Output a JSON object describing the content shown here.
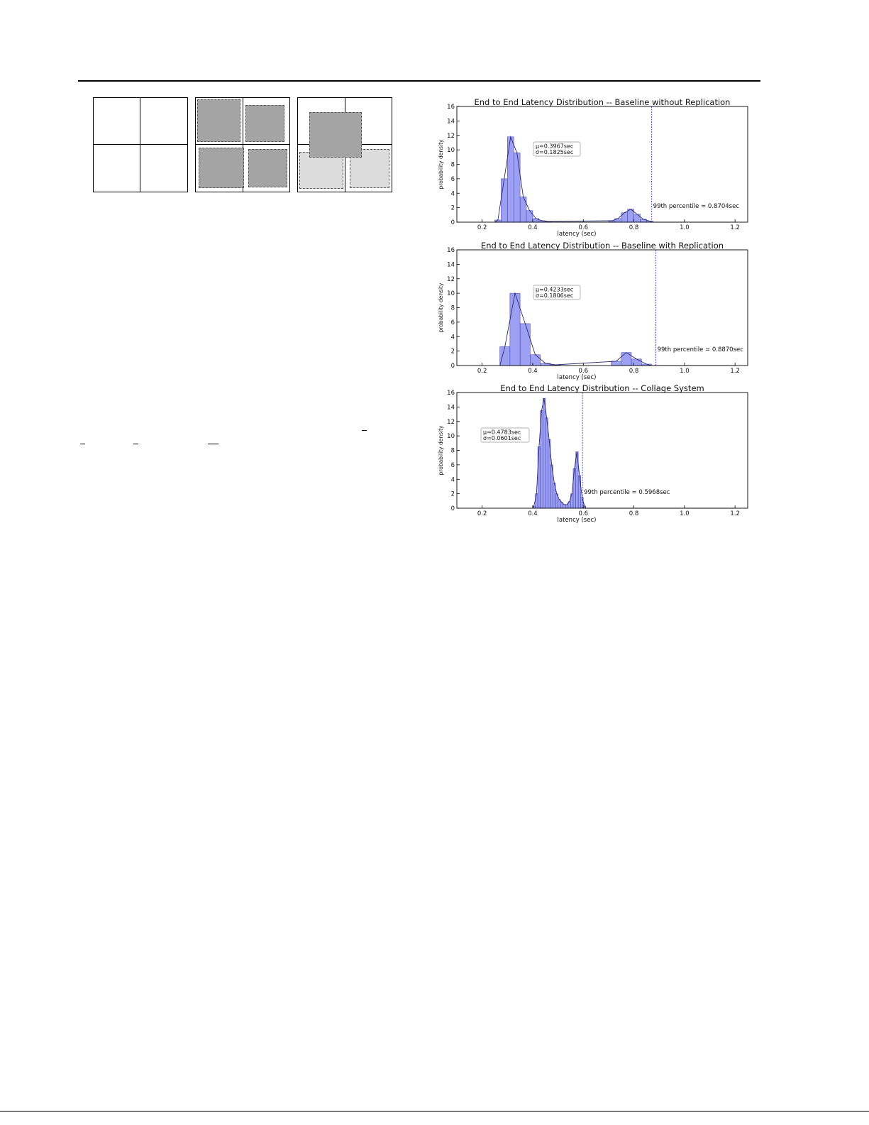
{
  "figure": {
    "diagram_panels": [
      {
        "name": "empty-grid",
        "tiles": []
      },
      {
        "name": "four-tiles",
        "tiles": [
          "dark",
          "dark",
          "dark",
          "dark"
        ]
      },
      {
        "name": "collage-tiles",
        "tiles": [
          "light",
          "light",
          "dark"
        ]
      }
    ]
  },
  "colors": {
    "bar": "#8b8ef0",
    "bar_edge": "#3c3fb0",
    "curve": "#2a2a6a",
    "percentile_line": "#3d3dcc"
  },
  "chart_data": [
    {
      "type": "bar",
      "title": "End to End Latency Distribution -- Baseline without Replication",
      "xlabel": "latency (sec)",
      "ylabel": "probability density",
      "xlim": [
        0.1,
        1.25
      ],
      "ylim": [
        0,
        16
      ],
      "xticks": [
        "0.2",
        "0.4",
        "0.6",
        "0.8",
        "1.0",
        "1.2"
      ],
      "yticks": [
        "0",
        "2",
        "4",
        "6",
        "8",
        "10",
        "12",
        "14",
        "16"
      ],
      "bin_width": 0.025,
      "bins": [
        [
          0.25,
          0.3
        ],
        [
          0.275,
          6.0
        ],
        [
          0.3,
          11.8
        ],
        [
          0.325,
          9.6
        ],
        [
          0.35,
          3.5
        ],
        [
          0.375,
          1.6
        ],
        [
          0.4,
          0.5
        ],
        [
          0.425,
          0.2
        ],
        [
          0.45,
          0.1
        ],
        [
          0.7,
          0.2
        ],
        [
          0.725,
          0.5
        ],
        [
          0.75,
          1.3
        ],
        [
          0.775,
          1.8
        ],
        [
          0.8,
          1.1
        ],
        [
          0.825,
          0.4
        ],
        [
          0.85,
          0.15
        ]
      ],
      "annotation": {
        "mean": "μ=0.3967sec",
        "std": "σ=0.1825sec"
      },
      "percentile": {
        "value": 0.8704,
        "label": "99th percentile = 0.8704sec"
      },
      "grid": false
    },
    {
      "type": "bar",
      "title": "End to End Latency Distribution -- Baseline with Replication",
      "xlabel": "latency (sec)",
      "ylabel": "probability density",
      "xlim": [
        0.1,
        1.25
      ],
      "ylim": [
        0,
        16
      ],
      "xticks": [
        "0.2",
        "0.4",
        "0.6",
        "0.8",
        "1.0",
        "1.2"
      ],
      "yticks": [
        "0",
        "2",
        "4",
        "6",
        "8",
        "10",
        "12",
        "14",
        "16"
      ],
      "bin_width": 0.04,
      "bins": [
        [
          0.27,
          2.6
        ],
        [
          0.31,
          10.0
        ],
        [
          0.35,
          5.8
        ],
        [
          0.39,
          1.5
        ],
        [
          0.43,
          0.3
        ],
        [
          0.47,
          0.1
        ],
        [
          0.71,
          0.6
        ],
        [
          0.75,
          1.8
        ],
        [
          0.79,
          0.9
        ],
        [
          0.83,
          0.2
        ]
      ],
      "annotation": {
        "mean": "μ=0.4233sec",
        "std": "σ=0.1806sec"
      },
      "percentile": {
        "value": 0.887,
        "label": "99th percentile = 0.8870sec"
      },
      "grid": false
    },
    {
      "type": "bar",
      "title": "End to End Latency Distribution -- Collage System",
      "xlabel": "latency (sec)",
      "ylabel": "probability density",
      "xlim": [
        0.1,
        1.25
      ],
      "ylim": [
        0,
        16
      ],
      "xticks": [
        "0.2",
        "0.4",
        "0.6",
        "0.8",
        "1.0",
        "1.2"
      ],
      "yticks": [
        "0",
        "2",
        "4",
        "6",
        "8",
        "10",
        "12",
        "14",
        "16"
      ],
      "bin_width": 0.01,
      "bins": [
        [
          0.4,
          0.3
        ],
        [
          0.41,
          2.0
        ],
        [
          0.42,
          8.5
        ],
        [
          0.43,
          13.5
        ],
        [
          0.44,
          15.2
        ],
        [
          0.45,
          12.5
        ],
        [
          0.46,
          9.5
        ],
        [
          0.47,
          6.0
        ],
        [
          0.48,
          3.5
        ],
        [
          0.49,
          2.0
        ],
        [
          0.5,
          1.2
        ],
        [
          0.51,
          0.8
        ],
        [
          0.52,
          0.5
        ],
        [
          0.53,
          0.5
        ],
        [
          0.54,
          0.9
        ],
        [
          0.55,
          2.0
        ],
        [
          0.56,
          5.5
        ],
        [
          0.57,
          7.8
        ],
        [
          0.58,
          4.5
        ],
        [
          0.59,
          1.5
        ],
        [
          0.6,
          0.3
        ]
      ],
      "annotation": {
        "mean": "μ=0.4783sec",
        "std": "σ=0.0601sec"
      },
      "percentile": {
        "value": 0.5968,
        "label": "99th percentile = 0.5968sec"
      },
      "grid": false
    }
  ]
}
